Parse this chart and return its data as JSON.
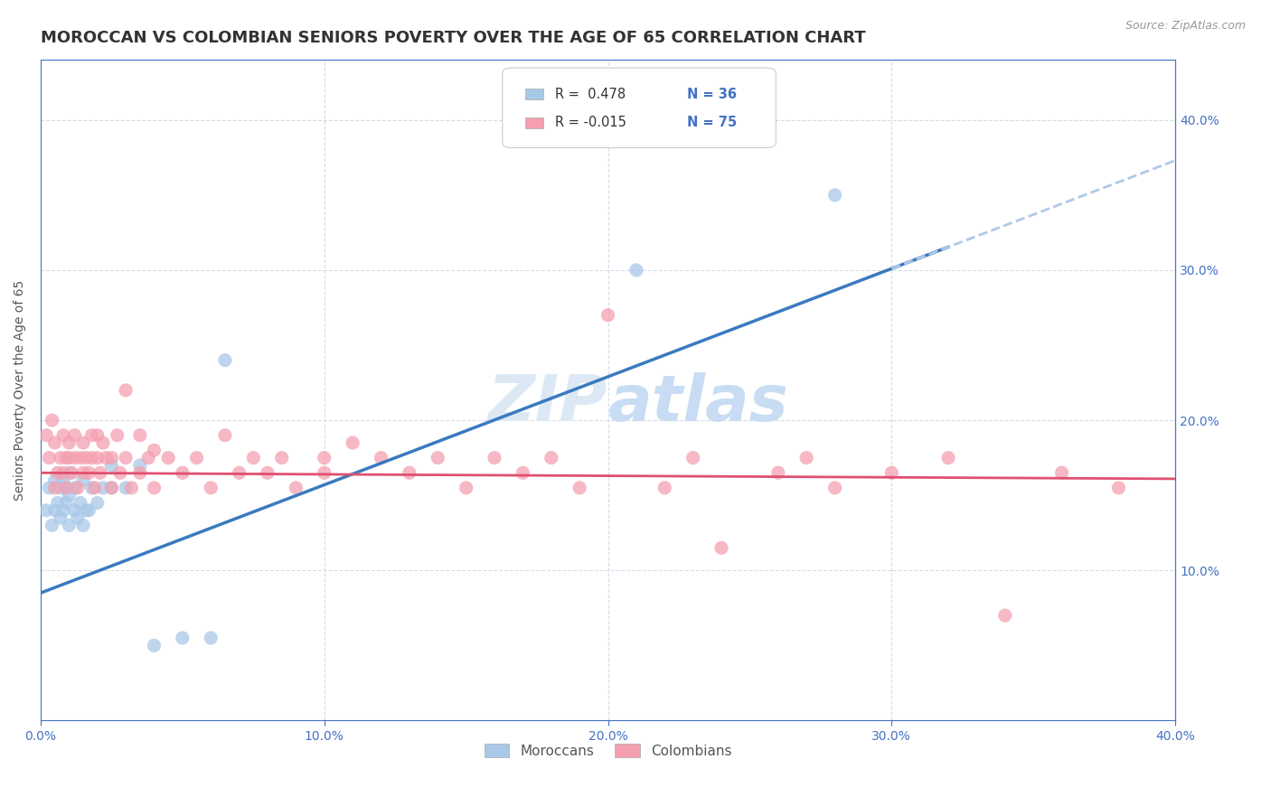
{
  "title": "MOROCCAN VS COLOMBIAN SENIORS POVERTY OVER THE AGE OF 65 CORRELATION CHART",
  "source": "Source: ZipAtlas.com",
  "ylabel": "Seniors Poverty Over the Age of 65",
  "xlim": [
    0.0,
    0.4
  ],
  "ylim": [
    0.0,
    0.44
  ],
  "moroccan_color": "#a8c8e8",
  "colombian_color": "#f4a0b0",
  "moroccan_trend_color": "#3a7abf",
  "colombian_trend_color": "#e05070",
  "dashed_line_color": "#b0c8e8",
  "watermark_color": "#dce8f4",
  "legend_R_moroccan": "R =  0.478",
  "legend_N_moroccan": "N = 36",
  "legend_R_colombian": "R = -0.015",
  "legend_N_colombian": "N = 75",
  "legend_label_moroccan": "Moroccans",
  "legend_label_colombian": "Colombians",
  "moroccan_x": [
    0.002,
    0.003,
    0.004,
    0.005,
    0.005,
    0.006,
    0.007,
    0.007,
    0.008,
    0.008,
    0.009,
    0.009,
    0.01,
    0.01,
    0.01,
    0.012,
    0.012,
    0.013,
    0.014,
    0.015,
    0.015,
    0.016,
    0.017,
    0.018,
    0.02,
    0.022,
    0.025,
    0.025,
    0.03,
    0.035,
    0.04,
    0.05,
    0.06,
    0.065,
    0.21,
    0.28
  ],
  "moroccan_y": [
    0.14,
    0.155,
    0.13,
    0.16,
    0.14,
    0.145,
    0.135,
    0.155,
    0.14,
    0.16,
    0.145,
    0.155,
    0.13,
    0.15,
    0.165,
    0.14,
    0.155,
    0.135,
    0.145,
    0.13,
    0.16,
    0.14,
    0.14,
    0.155,
    0.145,
    0.155,
    0.155,
    0.17,
    0.155,
    0.17,
    0.05,
    0.055,
    0.055,
    0.24,
    0.3,
    0.35
  ],
  "colombian_x": [
    0.002,
    0.003,
    0.004,
    0.005,
    0.005,
    0.006,
    0.007,
    0.008,
    0.008,
    0.009,
    0.009,
    0.01,
    0.01,
    0.011,
    0.012,
    0.012,
    0.013,
    0.014,
    0.015,
    0.015,
    0.016,
    0.017,
    0.018,
    0.018,
    0.019,
    0.02,
    0.02,
    0.021,
    0.022,
    0.023,
    0.025,
    0.025,
    0.027,
    0.028,
    0.03,
    0.03,
    0.032,
    0.035,
    0.035,
    0.038,
    0.04,
    0.04,
    0.045,
    0.05,
    0.055,
    0.06,
    0.065,
    0.07,
    0.075,
    0.08,
    0.085,
    0.09,
    0.1,
    0.1,
    0.11,
    0.12,
    0.13,
    0.14,
    0.15,
    0.16,
    0.17,
    0.18,
    0.19,
    0.2,
    0.22,
    0.23,
    0.24,
    0.26,
    0.27,
    0.28,
    0.3,
    0.32,
    0.34,
    0.36,
    0.38
  ],
  "colombian_y": [
    0.19,
    0.175,
    0.2,
    0.155,
    0.185,
    0.165,
    0.175,
    0.19,
    0.165,
    0.175,
    0.155,
    0.185,
    0.175,
    0.165,
    0.175,
    0.19,
    0.155,
    0.175,
    0.165,
    0.185,
    0.175,
    0.165,
    0.19,
    0.175,
    0.155,
    0.175,
    0.19,
    0.165,
    0.185,
    0.175,
    0.155,
    0.175,
    0.19,
    0.165,
    0.175,
    0.22,
    0.155,
    0.165,
    0.19,
    0.175,
    0.155,
    0.18,
    0.175,
    0.165,
    0.175,
    0.155,
    0.19,
    0.165,
    0.175,
    0.165,
    0.175,
    0.155,
    0.175,
    0.165,
    0.185,
    0.175,
    0.165,
    0.175,
    0.155,
    0.175,
    0.165,
    0.175,
    0.155,
    0.27,
    0.155,
    0.175,
    0.115,
    0.165,
    0.175,
    0.155,
    0.165,
    0.175,
    0.07,
    0.165,
    0.155
  ],
  "background_color": "#ffffff",
  "grid_color": "#d4dce8",
  "axis_color": "#4472c4",
  "tick_label_color": "#4472c4",
  "title_color": "#333333",
  "title_fontsize": 13,
  "axis_label_fontsize": 10,
  "tick_fontsize": 10,
  "legend_fontsize": 11,
  "moroccan_trend_intercept": 0.085,
  "moroccan_trend_slope": 0.72,
  "colombian_trend_intercept": 0.165,
  "colombian_trend_slope": -0.01
}
